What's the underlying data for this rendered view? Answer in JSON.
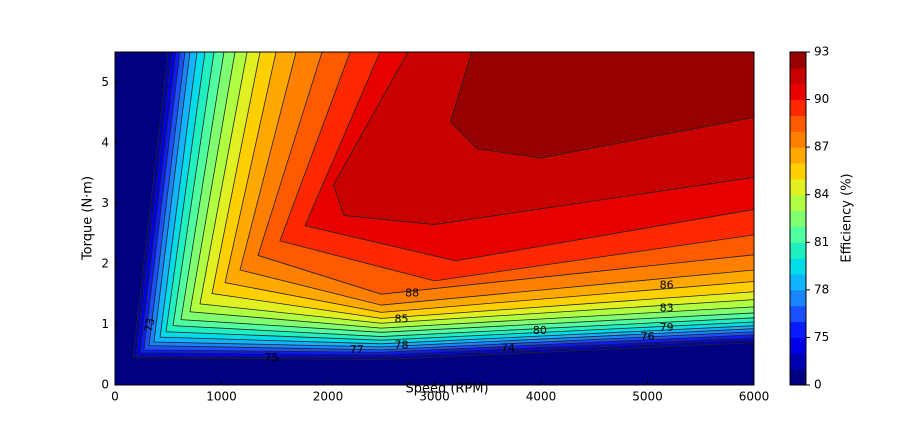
{
  "chart_data": {
    "type": "contour",
    "xlabel": "Speed (RPM)",
    "ylabel": "Torque (N·m)",
    "colorbar_label": "Efficiency (%)",
    "xlim": [
      0,
      6000
    ],
    "ylim": [
      0,
      5.5
    ],
    "xticks": [
      0,
      1000,
      2000,
      3000,
      4000,
      5000,
      6000
    ],
    "yticks": [
      0,
      1,
      2,
      3,
      4,
      5
    ],
    "levels": [
      0,
      73,
      74,
      75,
      76,
      77,
      78,
      79,
      80,
      81,
      82,
      83,
      84,
      85,
      86,
      87,
      88,
      89,
      90,
      91,
      92,
      93
    ],
    "colors": [
      "#000080",
      "#0000b3",
      "#0000e6",
      "#0a1cff",
      "#1a50ff",
      "#1a84ff",
      "#10b4ff",
      "#00dce8",
      "#20f0c0",
      "#50ffa0",
      "#80ff70",
      "#b0ff40",
      "#e0f020",
      "#ffd000",
      "#ffa800",
      "#ff8000",
      "#ff5a00",
      "#ff2800",
      "#e80000",
      "#c80000",
      "#960000"
    ],
    "colorbar_ticks": [
      0,
      75,
      78,
      81,
      84,
      87,
      90,
      93
    ],
    "contours": [
      {
        "x": [
          498,
          169,
          2500,
          6000
        ],
        "y": [
          5.5,
          0.45,
          0.42,
          0.7
        ]
      },
      {
        "x": [
          535,
          197,
          2500,
          6000
        ],
        "y": [
          5.5,
          0.48,
          0.46,
          0.75
        ]
      },
      {
        "x": [
          573,
          235,
          2500,
          6000
        ],
        "y": [
          5.5,
          0.53,
          0.5,
          0.78
        ]
      },
      {
        "x": [
          610,
          272,
          2500,
          6000
        ],
        "y": [
          5.5,
          0.58,
          0.54,
          0.83
        ]
      },
      {
        "x": [
          657,
          319,
          2500,
          6000
        ],
        "y": [
          5.5,
          0.65,
          0.58,
          0.88
        ]
      },
      {
        "x": [
          704,
          366,
          2500,
          6000
        ],
        "y": [
          5.5,
          0.71,
          0.63,
          0.93
        ]
      },
      {
        "x": [
          770,
          423,
          2500,
          6000
        ],
        "y": [
          5.5,
          0.79,
          0.68,
          0.98
        ]
      },
      {
        "x": [
          845,
          479,
          2500,
          6000
        ],
        "y": [
          5.5,
          0.88,
          0.74,
          1.04
        ]
      },
      {
        "x": [
          930,
          545,
          2500,
          6000
        ],
        "y": [
          5.5,
          0.98,
          0.8,
          1.11
        ]
      },
      {
        "x": [
          1023,
          620,
          2500,
          6000
        ],
        "y": [
          5.5,
          1.08,
          0.87,
          1.19
        ]
      },
      {
        "x": [
          1127,
          704,
          2500,
          6000
        ],
        "y": [
          5.5,
          1.21,
          0.94,
          1.29
        ]
      },
      {
        "x": [
          1240,
          798,
          2500,
          6000
        ],
        "y": [
          5.5,
          1.34,
          1.02,
          1.41
        ]
      },
      {
        "x": [
          1362,
          911,
          2500,
          6000
        ],
        "y": [
          5.5,
          1.51,
          1.1,
          1.54
        ]
      },
      {
        "x": [
          1512,
          1033,
          2500,
          6000
        ],
        "y": [
          5.5,
          1.69,
          1.2,
          1.71
        ]
      },
      {
        "x": [
          1700,
          1174,
          2500,
          6000
        ],
        "y": [
          5.5,
          1.9,
          1.32,
          1.9
        ]
      },
      {
        "x": [
          1944,
          1343,
          2500,
          6000
        ],
        "y": [
          5.5,
          2.14,
          1.5,
          2.15
        ]
      },
      {
        "x": [
          2207,
          1549,
          3000,
          6000
        ],
        "y": [
          5.5,
          2.38,
          1.72,
          2.48
        ]
      },
      {
        "x": [
          2488,
          1784,
          3200,
          6000
        ],
        "y": [
          5.5,
          2.63,
          2.05,
          2.9
        ]
      },
      {
        "x": [
          2750,
          2050,
          2150,
          3000,
          6000
        ],
        "y": [
          5.5,
          3.3,
          2.8,
          2.65,
          3.43
        ]
      },
      {
        "x": [
          3350,
          3150,
          3400,
          4000,
          6000
        ],
        "y": [
          5.5,
          4.35,
          3.9,
          3.75,
          4.42
        ]
      }
    ]
  }
}
